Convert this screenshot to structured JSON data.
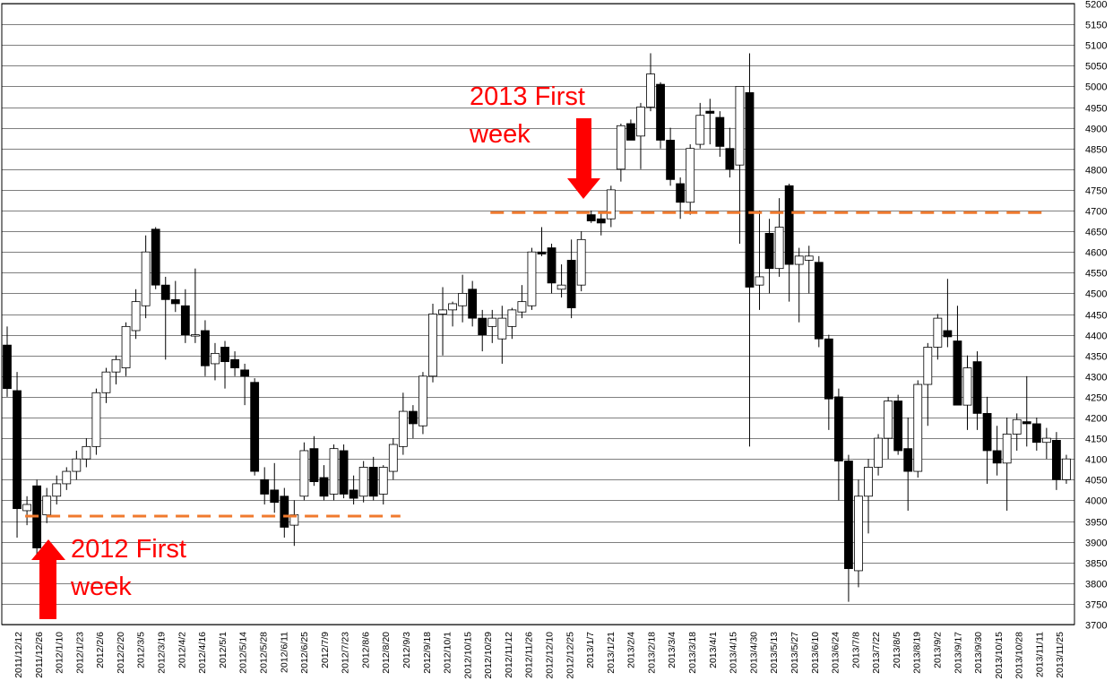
{
  "chart_data": {
    "type": "candlestick",
    "title": "",
    "xlabel": "",
    "ylabel": "",
    "ylim": [
      3700,
      5200
    ],
    "y_tick_step": 50,
    "grid": true,
    "colors": {
      "up": "#ffffff",
      "down": "#000000",
      "guide": "#f07a2e",
      "annotation": "#ff0000",
      "grid": "#000000"
    },
    "x_tick_labels": [
      "2011/12/12",
      "2011/12/26",
      "2012/1/10",
      "2012/1/23",
      "2012/2/6",
      "2012/2/20",
      "2012/3/5",
      "2012/3/19",
      "2012/4/2",
      "2012/4/16",
      "2012/5/1",
      "2012/5/14",
      "2012/5/28",
      "2012/6/11",
      "2012/6/25",
      "2012/7/9",
      "2012/7/23",
      "2012/8/6",
      "2012/8/20",
      "2012/9/3",
      "2012/9/18",
      "2012/10/1",
      "2012/10/15",
      "2012/10/29",
      "2012/11/12",
      "2012/11/26",
      "2012/12/10",
      "2012/12/25",
      "2013/1/7",
      "2013/1/21",
      "2013/2/4",
      "2013/2/18",
      "2013/3/4",
      "2013/3/18",
      "2013/4/1",
      "2013/4/15",
      "2013/4/30",
      "2013/5/13",
      "2013/5/27",
      "2013/6/10",
      "2013/6/24",
      "2013/7/8",
      "2013/7/22",
      "2013/8/5",
      "2013/8/19",
      "2013/9/2",
      "2013/9/17",
      "2013/9/30",
      "2013/10/15",
      "2013/10/28",
      "2013/11/11",
      "2013/11/25"
    ],
    "candles": [
      {
        "o": 4375,
        "h": 4420,
        "l": 4250,
        "c": 4270
      },
      {
        "o": 4265,
        "h": 4310,
        "l": 3910,
        "c": 3980
      },
      {
        "o": 3975,
        "h": 4010,
        "l": 3940,
        "c": 3990
      },
      {
        "o": 4035,
        "h": 4050,
        "l": 3860,
        "c": 3885
      },
      {
        "o": 3965,
        "h": 4030,
        "l": 3945,
        "c": 4010
      },
      {
        "o": 4010,
        "h": 4060,
        "l": 3990,
        "c": 4040
      },
      {
        "o": 4040,
        "h": 4080,
        "l": 4025,
        "c": 4070
      },
      {
        "o": 4070,
        "h": 4120,
        "l": 4050,
        "c": 4100
      },
      {
        "o": 4100,
        "h": 4150,
        "l": 4080,
        "c": 4130
      },
      {
        "o": 4130,
        "h": 4270,
        "l": 4110,
        "c": 4260
      },
      {
        "o": 4260,
        "h": 4320,
        "l": 4235,
        "c": 4310
      },
      {
        "o": 4310,
        "h": 4350,
        "l": 4280,
        "c": 4340
      },
      {
        "o": 4320,
        "h": 4430,
        "l": 4300,
        "c": 4420
      },
      {
        "o": 4410,
        "h": 4510,
        "l": 4390,
        "c": 4480
      },
      {
        "o": 4470,
        "h": 4640,
        "l": 4440,
        "c": 4600
      },
      {
        "o": 4655,
        "h": 4660,
        "l": 4510,
        "c": 4520
      },
      {
        "o": 4520,
        "h": 4540,
        "l": 4340,
        "c": 4485
      },
      {
        "o": 4485,
        "h": 4530,
        "l": 4455,
        "c": 4475
      },
      {
        "o": 4470,
        "h": 4510,
        "l": 4380,
        "c": 4400
      },
      {
        "o": 4400,
        "h": 4560,
        "l": 4380,
        "c": 4400
      },
      {
        "o": 4410,
        "h": 4435,
        "l": 4300,
        "c": 4325
      },
      {
        "o": 4330,
        "h": 4380,
        "l": 4290,
        "c": 4355
      },
      {
        "o": 4370,
        "h": 4385,
        "l": 4270,
        "c": 4335
      },
      {
        "o": 4340,
        "h": 4360,
        "l": 4300,
        "c": 4320
      },
      {
        "o": 4315,
        "h": 4330,
        "l": 4230,
        "c": 4300
      },
      {
        "o": 4285,
        "h": 4295,
        "l": 4060,
        "c": 4070
      },
      {
        "o": 4050,
        "h": 4080,
        "l": 3990,
        "c": 4015
      },
      {
        "o": 4025,
        "h": 4090,
        "l": 3970,
        "c": 3995
      },
      {
        "o": 4010,
        "h": 4030,
        "l": 3910,
        "c": 3935
      },
      {
        "o": 3940,
        "h": 4000,
        "l": 3890,
        "c": 3965
      },
      {
        "o": 4010,
        "h": 4140,
        "l": 4000,
        "c": 4120
      },
      {
        "o": 4125,
        "h": 4155,
        "l": 4035,
        "c": 4045
      },
      {
        "o": 4055,
        "h": 4085,
        "l": 4000,
        "c": 4010
      },
      {
        "o": 4015,
        "h": 4135,
        "l": 4000,
        "c": 4125
      },
      {
        "o": 4120,
        "h": 4135,
        "l": 4005,
        "c": 4015
      },
      {
        "o": 4025,
        "h": 4060,
        "l": 3990,
        "c": 4005
      },
      {
        "o": 4010,
        "h": 4095,
        "l": 3995,
        "c": 4080
      },
      {
        "o": 4080,
        "h": 4105,
        "l": 4000,
        "c": 4010
      },
      {
        "o": 4015,
        "h": 4085,
        "l": 3990,
        "c": 4080
      },
      {
        "o": 4070,
        "h": 4150,
        "l": 4050,
        "c": 4135
      },
      {
        "o": 4130,
        "h": 4260,
        "l": 4110,
        "c": 4215
      },
      {
        "o": 4215,
        "h": 4230,
        "l": 4150,
        "c": 4185
      },
      {
        "o": 4180,
        "h": 4310,
        "l": 4160,
        "c": 4300
      },
      {
        "o": 4300,
        "h": 4475,
        "l": 4285,
        "c": 4450
      },
      {
        "o": 4450,
        "h": 4515,
        "l": 4350,
        "c": 4460
      },
      {
        "o": 4460,
        "h": 4480,
        "l": 4420,
        "c": 4475
      },
      {
        "o": 4470,
        "h": 4545,
        "l": 4430,
        "c": 4500
      },
      {
        "o": 4510,
        "h": 4530,
        "l": 4420,
        "c": 4440
      },
      {
        "o": 4440,
        "h": 4460,
        "l": 4360,
        "c": 4400
      },
      {
        "o": 4420,
        "h": 4460,
        "l": 4380,
        "c": 4440
      },
      {
        "o": 4390,
        "h": 4470,
        "l": 4330,
        "c": 4440
      },
      {
        "o": 4420,
        "h": 4465,
        "l": 4390,
        "c": 4460
      },
      {
        "o": 4455,
        "h": 4520,
        "l": 4440,
        "c": 4480
      },
      {
        "o": 4470,
        "h": 4610,
        "l": 4460,
        "c": 4600
      },
      {
        "o": 4600,
        "h": 4660,
        "l": 4590,
        "c": 4595
      },
      {
        "o": 4610,
        "h": 4620,
        "l": 4500,
        "c": 4525
      },
      {
        "o": 4510,
        "h": 4570,
        "l": 4490,
        "c": 4520
      },
      {
        "o": 4580,
        "h": 4630,
        "l": 4440,
        "c": 4465
      },
      {
        "o": 4520,
        "h": 4650,
        "l": 4505,
        "c": 4630
      },
      {
        "o": 4690,
        "h": 4700,
        "l": 4670,
        "c": 4675
      },
      {
        "o": 4680,
        "h": 4695,
        "l": 4640,
        "c": 4670
      },
      {
        "o": 4680,
        "h": 4760,
        "l": 4660,
        "c": 4750
      },
      {
        "o": 4800,
        "h": 4910,
        "l": 4770,
        "c": 4905
      },
      {
        "o": 4910,
        "h": 4920,
        "l": 4870,
        "c": 4870
      },
      {
        "o": 4880,
        "h": 4960,
        "l": 4800,
        "c": 4950
      },
      {
        "o": 4950,
        "h": 5080,
        "l": 4940,
        "c": 5030
      },
      {
        "o": 5005,
        "h": 5010,
        "l": 4850,
        "c": 4870
      },
      {
        "o": 4870,
        "h": 4900,
        "l": 4760,
        "c": 4775
      },
      {
        "o": 4765,
        "h": 4780,
        "l": 4680,
        "c": 4720
      },
      {
        "o": 4720,
        "h": 4860,
        "l": 4690,
        "c": 4850
      },
      {
        "o": 4860,
        "h": 4960,
        "l": 4850,
        "c": 4930
      },
      {
        "o": 4940,
        "h": 4970,
        "l": 4860,
        "c": 4935
      },
      {
        "o": 4925,
        "h": 4940,
        "l": 4830,
        "c": 4855
      },
      {
        "o": 4850,
        "h": 4900,
        "l": 4780,
        "c": 4800
      },
      {
        "o": 4810,
        "h": 5000,
        "l": 4620,
        "c": 5000
      },
      {
        "o": 4985,
        "h": 5080,
        "l": 4130,
        "c": 4515
      },
      {
        "o": 4520,
        "h": 4700,
        "l": 4460,
        "c": 4540
      },
      {
        "o": 4645,
        "h": 4680,
        "l": 4500,
        "c": 4560
      },
      {
        "o": 4560,
        "h": 4730,
        "l": 4540,
        "c": 4660
      },
      {
        "o": 4760,
        "h": 4765,
        "l": 4480,
        "c": 4570
      },
      {
        "o": 4570,
        "h": 4610,
        "l": 4430,
        "c": 4590
      },
      {
        "o": 4580,
        "h": 4615,
        "l": 4500,
        "c": 4590
      },
      {
        "o": 4575,
        "h": 4590,
        "l": 4370,
        "c": 4390
      },
      {
        "o": 4390,
        "h": 4400,
        "l": 4170,
        "c": 4245
      },
      {
        "o": 4250,
        "h": 4270,
        "l": 4000,
        "c": 4095
      },
      {
        "o": 4095,
        "h": 4110,
        "l": 3755,
        "c": 3835
      },
      {
        "o": 3830,
        "h": 4050,
        "l": 3790,
        "c": 4010
      },
      {
        "o": 4010,
        "h": 4100,
        "l": 3920,
        "c": 4080
      },
      {
        "o": 4080,
        "h": 4160,
        "l": 4060,
        "c": 4150
      },
      {
        "o": 4150,
        "h": 4250,
        "l": 4100,
        "c": 4240
      },
      {
        "o": 4240,
        "h": 4255,
        "l": 4110,
        "c": 4120
      },
      {
        "o": 4125,
        "h": 4200,
        "l": 3975,
        "c": 4070
      },
      {
        "o": 4070,
        "h": 4290,
        "l": 4055,
        "c": 4280
      },
      {
        "o": 4280,
        "h": 4380,
        "l": 4180,
        "c": 4370
      },
      {
        "o": 4370,
        "h": 4450,
        "l": 4340,
        "c": 4440
      },
      {
        "o": 4410,
        "h": 4535,
        "l": 4370,
        "c": 4395
      },
      {
        "o": 4385,
        "h": 4470,
        "l": 4230,
        "c": 4230
      },
      {
        "o": 4230,
        "h": 4350,
        "l": 4170,
        "c": 4320
      },
      {
        "o": 4335,
        "h": 4360,
        "l": 4170,
        "c": 4210
      },
      {
        "o": 4210,
        "h": 4250,
        "l": 4040,
        "c": 4120
      },
      {
        "o": 4120,
        "h": 4180,
        "l": 4060,
        "c": 4090
      },
      {
        "o": 4090,
        "h": 4200,
        "l": 3975,
        "c": 4160
      },
      {
        "o": 4160,
        "h": 4210,
        "l": 4120,
        "c": 4195
      },
      {
        "o": 4190,
        "h": 4300,
        "l": 4130,
        "c": 4185
      },
      {
        "o": 4185,
        "h": 4200,
        "l": 4120,
        "c": 4140
      },
      {
        "o": 4140,
        "h": 4175,
        "l": 4100,
        "c": 4150
      },
      {
        "o": 4145,
        "h": 4165,
        "l": 4025,
        "c": 4050
      },
      {
        "o": 4050,
        "h": 4110,
        "l": 4040,
        "c": 4100
      }
    ],
    "guides": [
      {
        "label": "2012 First week",
        "y": 3962,
        "from": 2,
        "to": 39
      },
      {
        "label": "2013 First week",
        "y": 4695,
        "from": 49,
        "to": 104
      }
    ],
    "annotations": [
      {
        "text_line1": "2012 First",
        "text_line2": "week",
        "arrow": "up"
      },
      {
        "text_line1": "2013 First",
        "text_line2": "week",
        "arrow": "down"
      }
    ]
  }
}
